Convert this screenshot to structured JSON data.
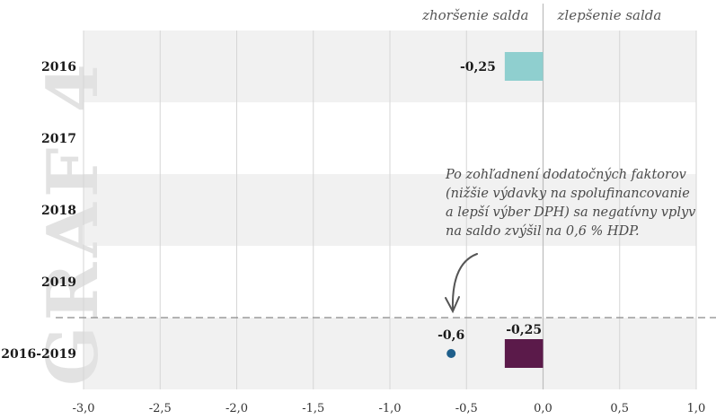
{
  "watermark": "GRAF 4",
  "header": {
    "left_label": "zhoršenie salda",
    "right_label": "zlepšenie salda"
  },
  "annotation": {
    "lines": [
      "Po zohľadnení dodatočných faktorov",
      "(nižšie výdavky na spolufinancovanie",
      "a lepší výber DPH) sa negatívny vplyv",
      "na saldo zvýšil na 0,6 % HDP."
    ]
  },
  "colors": {
    "bar_2016": "#8fcfcf",
    "bar_total": "#5b1a4a",
    "point": "#1f5f8b"
  },
  "chart_data": {
    "type": "bar",
    "orientation": "horizontal",
    "categories": [
      "2016",
      "2017",
      "2018",
      "2019",
      "2016-2019"
    ],
    "series": [
      {
        "values": [
          -0.25,
          null,
          null,
          null,
          -0.25
        ],
        "labels": [
          "-0,25",
          "",
          "",
          "",
          "-0,25"
        ]
      }
    ],
    "points": [
      {
        "category": "2016-2019",
        "value": -0.6,
        "label": "-0,6"
      }
    ],
    "xlim": [
      -3.0,
      1.0
    ],
    "xticks": [
      "-3,0",
      "-2,5",
      "-2,0",
      "-1,5",
      "-1,0",
      "-0,5",
      "0,0",
      "0,5",
      "1,0"
    ],
    "grid": true
  }
}
